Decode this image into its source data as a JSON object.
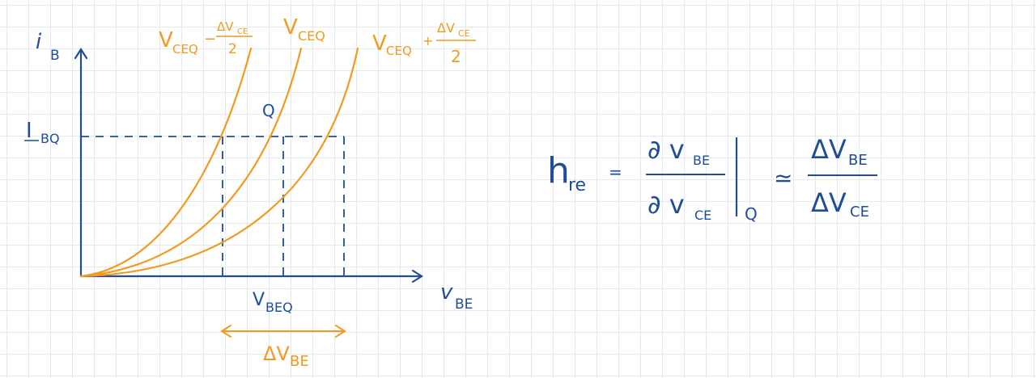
{
  "colors": {
    "ink": "#1f4e96",
    "curve": "#f29a1f",
    "grid": "#e6e9ee"
  },
  "axes": {
    "y_label_main": "i",
    "y_label_sub": "B",
    "x_label_main": "v",
    "x_label_sub": "BE"
  },
  "levels": {
    "ibq_main": "I",
    "ibq_sub": "BQ",
    "vbeq_main": "V",
    "vbeq_sub": "BEQ",
    "q_point": "Q"
  },
  "curves": [
    {
      "label_main": "V",
      "label_sub": "CEQ",
      "label_op": "−",
      "label_num": "ΔV",
      "label_num_sub": "CE",
      "label_den": "2"
    },
    {
      "label_main": "V",
      "label_sub": "CEQ"
    },
    {
      "label_main": "V",
      "label_sub": "CEQ",
      "label_op": "+",
      "label_num": "ΔV",
      "label_num_sub": "CE",
      "label_den": "2"
    }
  ],
  "delta_vbe": {
    "main": "ΔV",
    "sub": "BE"
  },
  "formula": {
    "lhs_main": "h",
    "lhs_sub": "re",
    "equals": "=",
    "num_main": "∂ v",
    "num_sub": "BE",
    "den_main": "∂ v",
    "den_sub": "CE",
    "eval_at": "Q",
    "approx": "≃",
    "rhs_num_main": "ΔV",
    "rhs_num_sub": "BE",
    "rhs_den_main": "ΔV",
    "rhs_den_sub": "CE"
  }
}
